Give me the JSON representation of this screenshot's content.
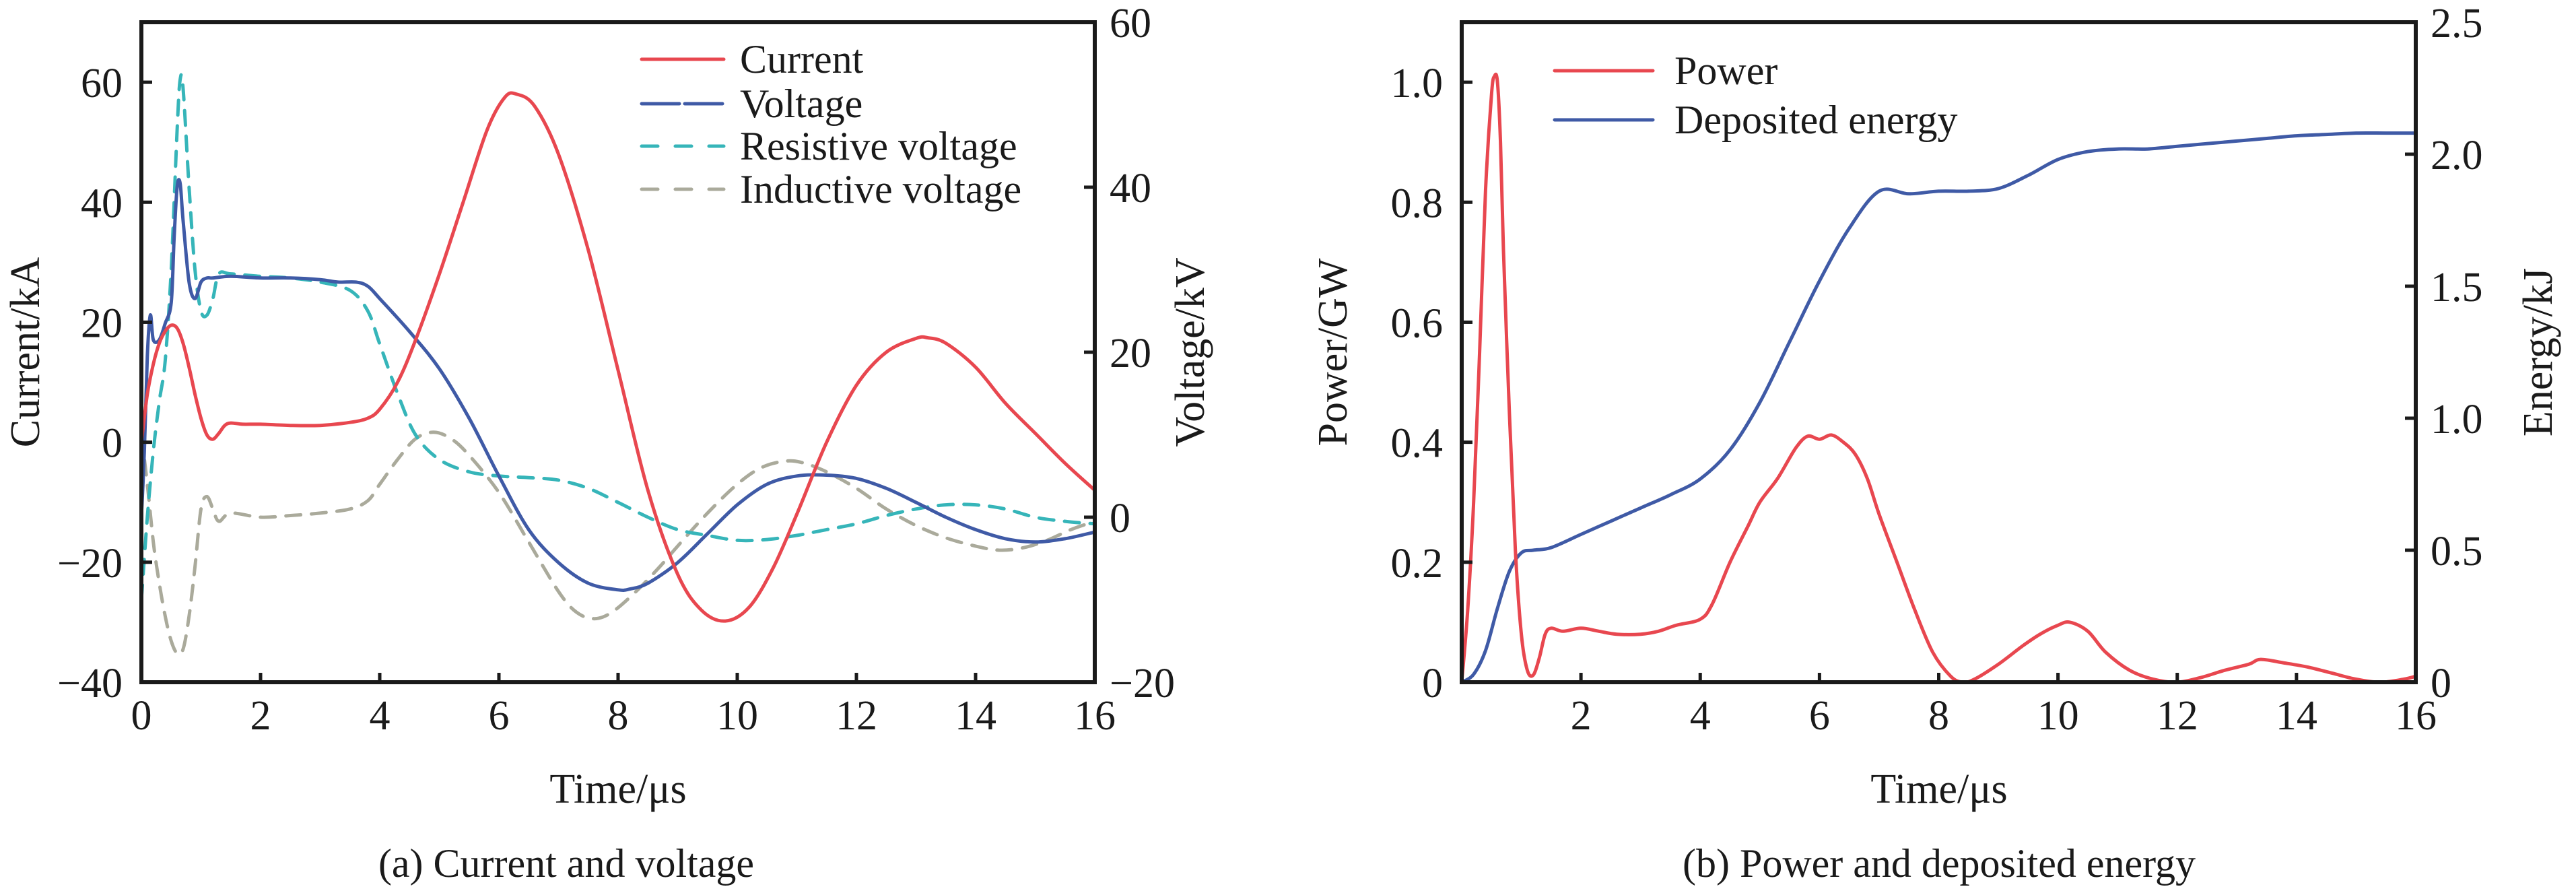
{
  "chart_data": [
    {
      "id": "a",
      "type": "line",
      "caption": "(a) Current and voltage",
      "xlabel": "Time/μs",
      "ylabel": "Current/kA",
      "y2label": "Voltage/kV",
      "xlim": [
        0,
        16
      ],
      "ylim": [
        -40,
        70
      ],
      "y2lim": [
        -20,
        60
      ],
      "xticks": [
        0,
        2,
        4,
        6,
        8,
        10,
        12,
        14,
        16
      ],
      "xtick_labels": [
        "0",
        "2",
        "4",
        "6",
        "8",
        "10",
        "12",
        "14",
        "16"
      ],
      "yticks": [
        -40,
        -20,
        0,
        20,
        40,
        60
      ],
      "ytick_labels": [
        "−40",
        "−20",
        "0",
        "20",
        "40",
        "60"
      ],
      "y2ticks": [
        -20,
        0,
        20,
        40,
        60
      ],
      "y2tick_labels": [
        "−20",
        "0",
        "20",
        "40",
        "60"
      ],
      "grid": false,
      "legend_position": "top-right",
      "series": [
        {
          "name": "Current",
          "axis": "left",
          "color": "#e8474f",
          "style": "solid",
          "x": [
            0,
            0.1,
            0.2,
            0.3,
            0.4,
            0.5,
            0.6,
            0.7,
            0.8,
            0.9,
            1.0,
            1.1,
            1.2,
            1.3,
            1.4,
            1.5,
            1.7,
            2.0,
            2.5,
            3.0,
            3.5,
            3.8,
            4.0,
            4.3,
            4.6,
            5.0,
            5.4,
            5.8,
            6.1,
            6.3,
            6.6,
            7.0,
            7.5,
            8.0,
            8.5,
            9.0,
            9.4,
            9.8,
            10.2,
            10.6,
            11.0,
            11.5,
            12.0,
            12.5,
            13.0,
            13.2,
            13.5,
            14.0,
            14.5,
            15.0,
            15.5,
            16.0
          ],
          "values": [
            0,
            8,
            13,
            16.5,
            18.5,
            19.5,
            19,
            16.5,
            12.5,
            8,
            4,
            1.2,
            0.5,
            1.5,
            2.8,
            3.2,
            3,
            3,
            2.8,
            2.8,
            3.3,
            4,
            5.5,
            10,
            17,
            28,
            40,
            52,
            57.5,
            58,
            56,
            48,
            32,
            12,
            -8,
            -22,
            -28,
            -29.8,
            -27.5,
            -21,
            -12,
            0,
            9.5,
            15,
            17.3,
            17.4,
            16.5,
            12.5,
            6.5,
            1.5,
            -3.5,
            -8
          ]
        },
        {
          "name": "Voltage",
          "axis": "right",
          "color": "#3f5aa6",
          "style": "long-dash (legend); solid (curve)",
          "x": [
            0,
            0.05,
            0.1,
            0.15,
            0.2,
            0.3,
            0.4,
            0.5,
            0.55,
            0.6,
            0.65,
            0.7,
            0.8,
            0.9,
            1.0,
            1.1,
            1.2,
            1.5,
            2.0,
            2.5,
            3.0,
            3.3,
            3.6,
            3.8,
            4.0,
            4.5,
            5.0,
            5.5,
            6.0,
            6.5,
            7.0,
            7.5,
            8.0,
            8.2,
            8.5,
            9.0,
            9.5,
            10.0,
            10.5,
            11.0,
            11.5,
            12.0,
            12.5,
            13.0,
            13.5,
            14.0,
            14.5,
            15.0,
            15.5,
            16.0
          ],
          "values": [
            0,
            8,
            19.5,
            24.5,
            21.5,
            21.5,
            23.5,
            26,
            34,
            40,
            40.5,
            36,
            28.5,
            26.5,
            28.5,
            29,
            29,
            29.2,
            29,
            29,
            28.8,
            28.5,
            28.5,
            28,
            26.5,
            22.5,
            18,
            12,
            5,
            -1.5,
            -5.5,
            -8,
            -8.8,
            -8.7,
            -8,
            -5.5,
            -2,
            1.5,
            4,
            5,
            5.1,
            4.7,
            3.5,
            1.8,
            0,
            -1.5,
            -2.6,
            -3,
            -2.6,
            -1.8
          ]
        },
        {
          "name": "Resistive voltage",
          "axis": "right",
          "color": "#36b5b9",
          "style": "dashed",
          "x": [
            0,
            0.1,
            0.2,
            0.3,
            0.4,
            0.5,
            0.6,
            0.65,
            0.7,
            0.8,
            0.9,
            1.0,
            1.1,
            1.2,
            1.3,
            1.5,
            2.0,
            2.5,
            3.0,
            3.5,
            3.8,
            4.0,
            4.3,
            4.6,
            5.0,
            5.5,
            6.0,
            6.5,
            7.0,
            7.5,
            8.0,
            8.5,
            9.0,
            9.5,
            10.0,
            10.5,
            11.0,
            11.5,
            12.0,
            12.5,
            13.0,
            13.5,
            14.0,
            14.5,
            15.0,
            15.5,
            16.0
          ],
          "values": [
            -10,
            0,
            8,
            14,
            19,
            30,
            47,
            53,
            52,
            40,
            30,
            25,
            24.5,
            26.5,
            29.5,
            29.5,
            29.2,
            29,
            28.5,
            27.5,
            25,
            21,
            15,
            10,
            7,
            5.5,
            5,
            4.8,
            4.5,
            3.5,
            1.8,
            0,
            -1.5,
            -2.2,
            -2.8,
            -2.7,
            -2.2,
            -1.5,
            -0.8,
            0.2,
            1,
            1.5,
            1.5,
            1,
            0,
            -0.5,
            -0.8
          ]
        },
        {
          "name": "Inductive voltage",
          "axis": "right",
          "color": "#aaaa9b",
          "style": "dashed",
          "x": [
            0,
            0.1,
            0.2,
            0.3,
            0.4,
            0.5,
            0.6,
            0.7,
            0.8,
            0.9,
            1.0,
            1.1,
            1.2,
            1.3,
            1.5,
            2.0,
            2.5,
            3.0,
            3.5,
            3.8,
            4.0,
            4.3,
            4.6,
            4.9,
            5.2,
            5.5,
            6.0,
            6.5,
            7.0,
            7.3,
            7.6,
            7.9,
            8.3,
            8.7,
            9.0,
            9.5,
            10.0,
            10.4,
            10.8,
            11.1,
            11.5,
            12.0,
            12.5,
            13.0,
            13.5,
            14.0,
            14.4,
            14.8,
            15.2,
            15.6,
            16.0
          ],
          "values": [
            10,
            4,
            -3,
            -8,
            -12,
            -15,
            -16.5,
            -16,
            -12,
            -6,
            1,
            2.5,
            1,
            -0.5,
            0.5,
            0,
            0.2,
            0.5,
            1,
            2,
            4,
            7,
            9.5,
            10.3,
            9.5,
            7.5,
            3,
            -3,
            -9,
            -11.5,
            -12.3,
            -11.5,
            -9,
            -6,
            -3.5,
            0.5,
            4,
            6,
            6.8,
            6.6,
            5.5,
            3.5,
            1,
            -1,
            -2.5,
            -3.5,
            -4,
            -3.7,
            -2.8,
            -1.5,
            -0.5
          ]
        }
      ]
    },
    {
      "id": "b",
      "type": "line",
      "caption": "(b) Power and deposited energy",
      "xlabel": "Time/μs",
      "ylabel": "Power/GW",
      "y2label": "Energy/kJ",
      "xlim": [
        0,
        16
      ],
      "ylim": [
        0,
        1.1
      ],
      "y2lim": [
        0,
        2.5
      ],
      "xticks": [
        2,
        4,
        6,
        8,
        10,
        12,
        14,
        16
      ],
      "xtick_labels": [
        "2",
        "4",
        "6",
        "8",
        "10",
        "12",
        "14",
        "16"
      ],
      "yticks": [
        0,
        0.2,
        0.4,
        0.6,
        0.8,
        1.0
      ],
      "ytick_labels": [
        "0",
        "0.2",
        "0.4",
        "0.6",
        "0.8",
        "1.0"
      ],
      "y2ticks": [
        0,
        0.5,
        1.0,
        1.5,
        2.0,
        2.5
      ],
      "y2tick_labels": [
        "0",
        "0.5",
        "1.0",
        "1.5",
        "2.0",
        "2.5"
      ],
      "grid": false,
      "legend_position": "top-left",
      "series": [
        {
          "name": "Power",
          "axis": "left",
          "color": "#e8474f",
          "style": "solid",
          "x": [
            0,
            0.1,
            0.2,
            0.3,
            0.4,
            0.5,
            0.55,
            0.6,
            0.65,
            0.7,
            0.8,
            0.9,
            1.0,
            1.1,
            1.2,
            1.3,
            1.4,
            1.5,
            1.7,
            2.0,
            2.3,
            2.6,
            3.0,
            3.3,
            3.6,
            4.0,
            4.2,
            4.5,
            4.8,
            5.0,
            5.3,
            5.6,
            5.8,
            6.0,
            6.2,
            6.4,
            6.6,
            6.8,
            7.0,
            7.3,
            7.6,
            7.9,
            8.2,
            8.4,
            8.6,
            9.0,
            9.4,
            9.7,
            10.0,
            10.2,
            10.5,
            10.8,
            11.2,
            11.6,
            12.0,
            12.4,
            12.8,
            13.2,
            13.4,
            13.8,
            14.2,
            14.6,
            15.0,
            15.4,
            15.8,
            16.0
          ],
          "values": [
            0,
            0.12,
            0.3,
            0.55,
            0.82,
            0.98,
            1.01,
            1.0,
            0.9,
            0.72,
            0.45,
            0.22,
            0.08,
            0.02,
            0.012,
            0.04,
            0.08,
            0.09,
            0.085,
            0.09,
            0.085,
            0.08,
            0.08,
            0.085,
            0.095,
            0.105,
            0.13,
            0.2,
            0.26,
            0.3,
            0.34,
            0.39,
            0.41,
            0.405,
            0.412,
            0.4,
            0.38,
            0.34,
            0.28,
            0.2,
            0.12,
            0.05,
            0.01,
            0.0,
            0.005,
            0.03,
            0.06,
            0.08,
            0.095,
            0.1,
            0.085,
            0.05,
            0.02,
            0.005,
            0.0,
            0.008,
            0.02,
            0.03,
            0.038,
            0.032,
            0.025,
            0.015,
            0.005,
            0.0,
            0.005,
            0.01
          ]
        },
        {
          "name": "Deposited energy",
          "axis": "right",
          "color": "#3f5aa6",
          "style": "solid",
          "x": [
            0,
            0.2,
            0.4,
            0.6,
            0.8,
            1.0,
            1.2,
            1.5,
            2.0,
            2.5,
            3.0,
            3.5,
            4.0,
            4.5,
            5.0,
            5.5,
            6.0,
            6.5,
            7.0,
            7.5,
            8.0,
            8.5,
            9.0,
            9.5,
            10.0,
            10.5,
            11.0,
            11.5,
            12.0,
            12.5,
            13.0,
            13.5,
            14.0,
            14.5,
            15.0,
            15.5,
            16.0
          ],
          "values": [
            0,
            0.03,
            0.12,
            0.28,
            0.42,
            0.49,
            0.5,
            0.51,
            0.56,
            0.61,
            0.66,
            0.71,
            0.77,
            0.88,
            1.06,
            1.29,
            1.52,
            1.72,
            1.86,
            1.85,
            1.86,
            1.86,
            1.87,
            1.92,
            1.98,
            2.01,
            2.02,
            2.02,
            2.03,
            2.04,
            2.05,
            2.06,
            2.07,
            2.075,
            2.08,
            2.08,
            2.08
          ]
        }
      ]
    }
  ]
}
